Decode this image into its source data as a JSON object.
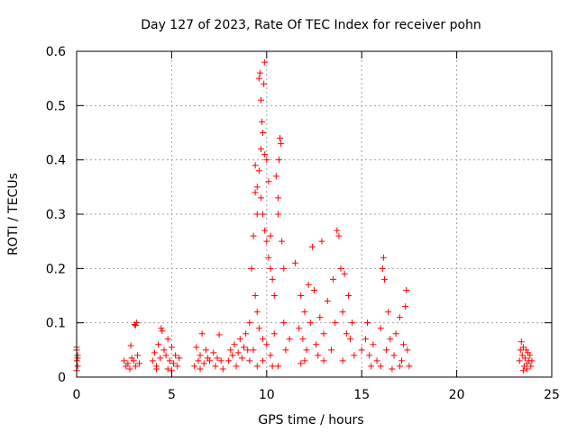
{
  "chart_data": {
    "type": "scatter",
    "title": "Day 127 of 2023, Rate Of TEC Index for receiver pohn",
    "xlabel": "GPS time / hours",
    "ylabel": "ROTI / TECUs",
    "xlim": [
      0,
      25
    ],
    "ylim": [
      0,
      0.6
    ],
    "x_ticks": [
      "0",
      "5",
      "10",
      "15",
      "20",
      "25"
    ],
    "y_ticks": [
      "0",
      "0.1",
      "0.2",
      "0.3",
      "0.4",
      "0.5",
      "0.6"
    ],
    "x_tick_values": [
      0,
      5,
      10,
      15,
      20,
      25
    ],
    "y_tick_values": [
      0,
      0.1,
      0.2,
      0.3,
      0.4,
      0.5,
      0.6
    ],
    "grid": true,
    "marker": "+",
    "marker_color": "#ff0000",
    "points": [
      [
        0.0,
        0.055
      ],
      [
        0.0,
        0.05
      ],
      [
        0.05,
        0.04
      ],
      [
        0.02,
        0.03
      ],
      [
        0.05,
        0.02
      ],
      [
        0.0,
        0.012
      ],
      [
        0.05,
        0.035
      ],
      [
        2.5,
        0.03
      ],
      [
        2.6,
        0.02
      ],
      [
        2.7,
        0.025
      ],
      [
        2.8,
        0.015
      ],
      [
        2.9,
        0.035
      ],
      [
        2.85,
        0.058
      ],
      [
        3.0,
        0.03
      ],
      [
        3.1,
        0.02
      ],
      [
        3.2,
        0.04
      ],
      [
        3.3,
        0.025
      ],
      [
        3.05,
        0.097
      ],
      [
        3.15,
        0.1
      ],
      [
        3.1,
        0.095
      ],
      [
        4.0,
        0.03
      ],
      [
        4.1,
        0.045
      ],
      [
        4.2,
        0.02
      ],
      [
        4.3,
        0.06
      ],
      [
        4.4,
        0.035
      ],
      [
        4.45,
        0.09
      ],
      [
        4.5,
        0.085
      ],
      [
        4.6,
        0.05
      ],
      [
        4.7,
        0.04
      ],
      [
        4.8,
        0.07
      ],
      [
        4.9,
        0.03
      ],
      [
        5.0,
        0.055
      ],
      [
        5.1,
        0.025
      ],
      [
        5.2,
        0.04
      ],
      [
        5.3,
        0.02
      ],
      [
        5.4,
        0.035
      ],
      [
        4.2,
        0.015
      ],
      [
        4.8,
        0.015
      ],
      [
        5.0,
        0.012
      ],
      [
        6.2,
        0.02
      ],
      [
        6.3,
        0.055
      ],
      [
        6.4,
        0.03
      ],
      [
        6.5,
        0.04
      ],
      [
        6.6,
        0.08
      ],
      [
        6.7,
        0.025
      ],
      [
        6.8,
        0.05
      ],
      [
        6.9,
        0.035
      ],
      [
        7.0,
        0.03
      ],
      [
        7.2,
        0.045
      ],
      [
        7.3,
        0.02
      ],
      [
        7.4,
        0.035
      ],
      [
        7.5,
        0.078
      ],
      [
        7.6,
        0.03
      ],
      [
        7.7,
        0.015
      ],
      [
        6.5,
        0.015
      ],
      [
        8.0,
        0.03
      ],
      [
        8.1,
        0.05
      ],
      [
        8.2,
        0.04
      ],
      [
        8.3,
        0.06
      ],
      [
        8.4,
        0.02
      ],
      [
        8.5,
        0.045
      ],
      [
        8.6,
        0.07
      ],
      [
        8.7,
        0.035
      ],
      [
        8.8,
        0.055
      ],
      [
        8.9,
        0.08
      ],
      [
        9.0,
        0.05
      ],
      [
        9.1,
        0.1
      ],
      [
        9.2,
        0.2
      ],
      [
        9.3,
        0.26
      ],
      [
        9.4,
        0.34
      ],
      [
        9.5,
        0.3
      ],
      [
        9.6,
        0.55
      ],
      [
        9.65,
        0.56
      ],
      [
        9.7,
        0.51
      ],
      [
        9.75,
        0.47
      ],
      [
        9.85,
        0.54
      ],
      [
        9.9,
        0.58
      ],
      [
        9.8,
        0.45
      ],
      [
        9.7,
        0.42
      ],
      [
        9.9,
        0.41
      ],
      [
        10.0,
        0.4
      ],
      [
        9.6,
        0.38
      ],
      [
        9.4,
        0.39
      ],
      [
        9.5,
        0.35
      ],
      [
        9.7,
        0.33
      ],
      [
        9.8,
        0.3
      ],
      [
        9.9,
        0.27
      ],
      [
        10.0,
        0.25
      ],
      [
        10.1,
        0.22
      ],
      [
        10.2,
        0.2
      ],
      [
        10.3,
        0.18
      ],
      [
        10.4,
        0.15
      ],
      [
        10.1,
        0.36
      ],
      [
        10.2,
        0.26
      ],
      [
        9.4,
        0.15
      ],
      [
        9.5,
        0.12
      ],
      [
        9.6,
        0.09
      ],
      [
        9.8,
        0.07
      ],
      [
        10.0,
        0.06
      ],
      [
        10.2,
        0.04
      ],
      [
        10.4,
        0.08
      ],
      [
        10.6,
        0.33
      ],
      [
        10.7,
        0.44
      ],
      [
        10.75,
        0.43
      ],
      [
        10.65,
        0.4
      ],
      [
        10.5,
        0.37
      ],
      [
        10.6,
        0.3
      ],
      [
        10.8,
        0.25
      ],
      [
        10.9,
        0.2
      ],
      [
        10.9,
        0.1
      ],
      [
        10.6,
        0.02
      ],
      [
        9.3,
        0.05
      ],
      [
        9.1,
        0.03
      ],
      [
        9.5,
        0.02
      ],
      [
        9.8,
        0.03
      ],
      [
        10.3,
        0.02
      ],
      [
        11.0,
        0.05
      ],
      [
        11.2,
        0.07
      ],
      [
        11.5,
        0.21
      ],
      [
        11.7,
        0.09
      ],
      [
        11.8,
        0.15
      ],
      [
        11.9,
        0.07
      ],
      [
        12.0,
        0.12
      ],
      [
        12.1,
        0.05
      ],
      [
        12.2,
        0.17
      ],
      [
        12.3,
        0.1
      ],
      [
        12.4,
        0.24
      ],
      [
        12.5,
        0.16
      ],
      [
        12.6,
        0.06
      ],
      [
        12.8,
        0.11
      ],
      [
        12.9,
        0.25
      ],
      [
        13.0,
        0.08
      ],
      [
        13.2,
        0.14
      ],
      [
        13.4,
        0.05
      ],
      [
        13.5,
        0.18
      ],
      [
        13.6,
        0.1
      ],
      [
        13.7,
        0.27
      ],
      [
        13.8,
        0.26
      ],
      [
        13.9,
        0.2
      ],
      [
        14.0,
        0.12
      ],
      [
        14.1,
        0.19
      ],
      [
        14.2,
        0.08
      ],
      [
        14.3,
        0.15
      ],
      [
        14.4,
        0.07
      ],
      [
        14.5,
        0.1
      ],
      [
        14.6,
        0.04
      ],
      [
        12.0,
        0.03
      ],
      [
        13.0,
        0.03
      ],
      [
        14.0,
        0.03
      ],
      [
        11.8,
        0.025
      ],
      [
        12.7,
        0.04
      ],
      [
        15.0,
        0.05
      ],
      [
        15.2,
        0.07
      ],
      [
        15.3,
        0.1
      ],
      [
        15.4,
        0.04
      ],
      [
        15.6,
        0.06
      ],
      [
        15.8,
        0.03
      ],
      [
        16.0,
        0.09
      ],
      [
        16.1,
        0.2
      ],
      [
        16.15,
        0.22
      ],
      [
        16.2,
        0.18
      ],
      [
        16.3,
        0.05
      ],
      [
        16.4,
        0.12
      ],
      [
        16.5,
        0.07
      ],
      [
        16.7,
        0.04
      ],
      [
        16.8,
        0.08
      ],
      [
        17.0,
        0.11
      ],
      [
        17.1,
        0.03
      ],
      [
        17.2,
        0.06
      ],
      [
        17.3,
        0.13
      ],
      [
        17.35,
        0.16
      ],
      [
        17.4,
        0.05
      ],
      [
        17.5,
        0.02
      ],
      [
        16.0,
        0.02
      ],
      [
        15.5,
        0.02
      ],
      [
        16.6,
        0.015
      ],
      [
        17.0,
        0.02
      ],
      [
        23.3,
        0.03
      ],
      [
        23.35,
        0.05
      ],
      [
        23.4,
        0.065
      ],
      [
        23.45,
        0.04
      ],
      [
        23.5,
        0.055
      ],
      [
        23.55,
        0.02
      ],
      [
        23.6,
        0.035
      ],
      [
        23.65,
        0.05
      ],
      [
        23.7,
        0.025
      ],
      [
        23.75,
        0.045
      ],
      [
        23.8,
        0.03
      ],
      [
        23.85,
        0.04
      ],
      [
        23.9,
        0.02
      ],
      [
        23.95,
        0.03
      ],
      [
        23.5,
        0.012
      ],
      [
        23.7,
        0.015
      ]
    ]
  }
}
